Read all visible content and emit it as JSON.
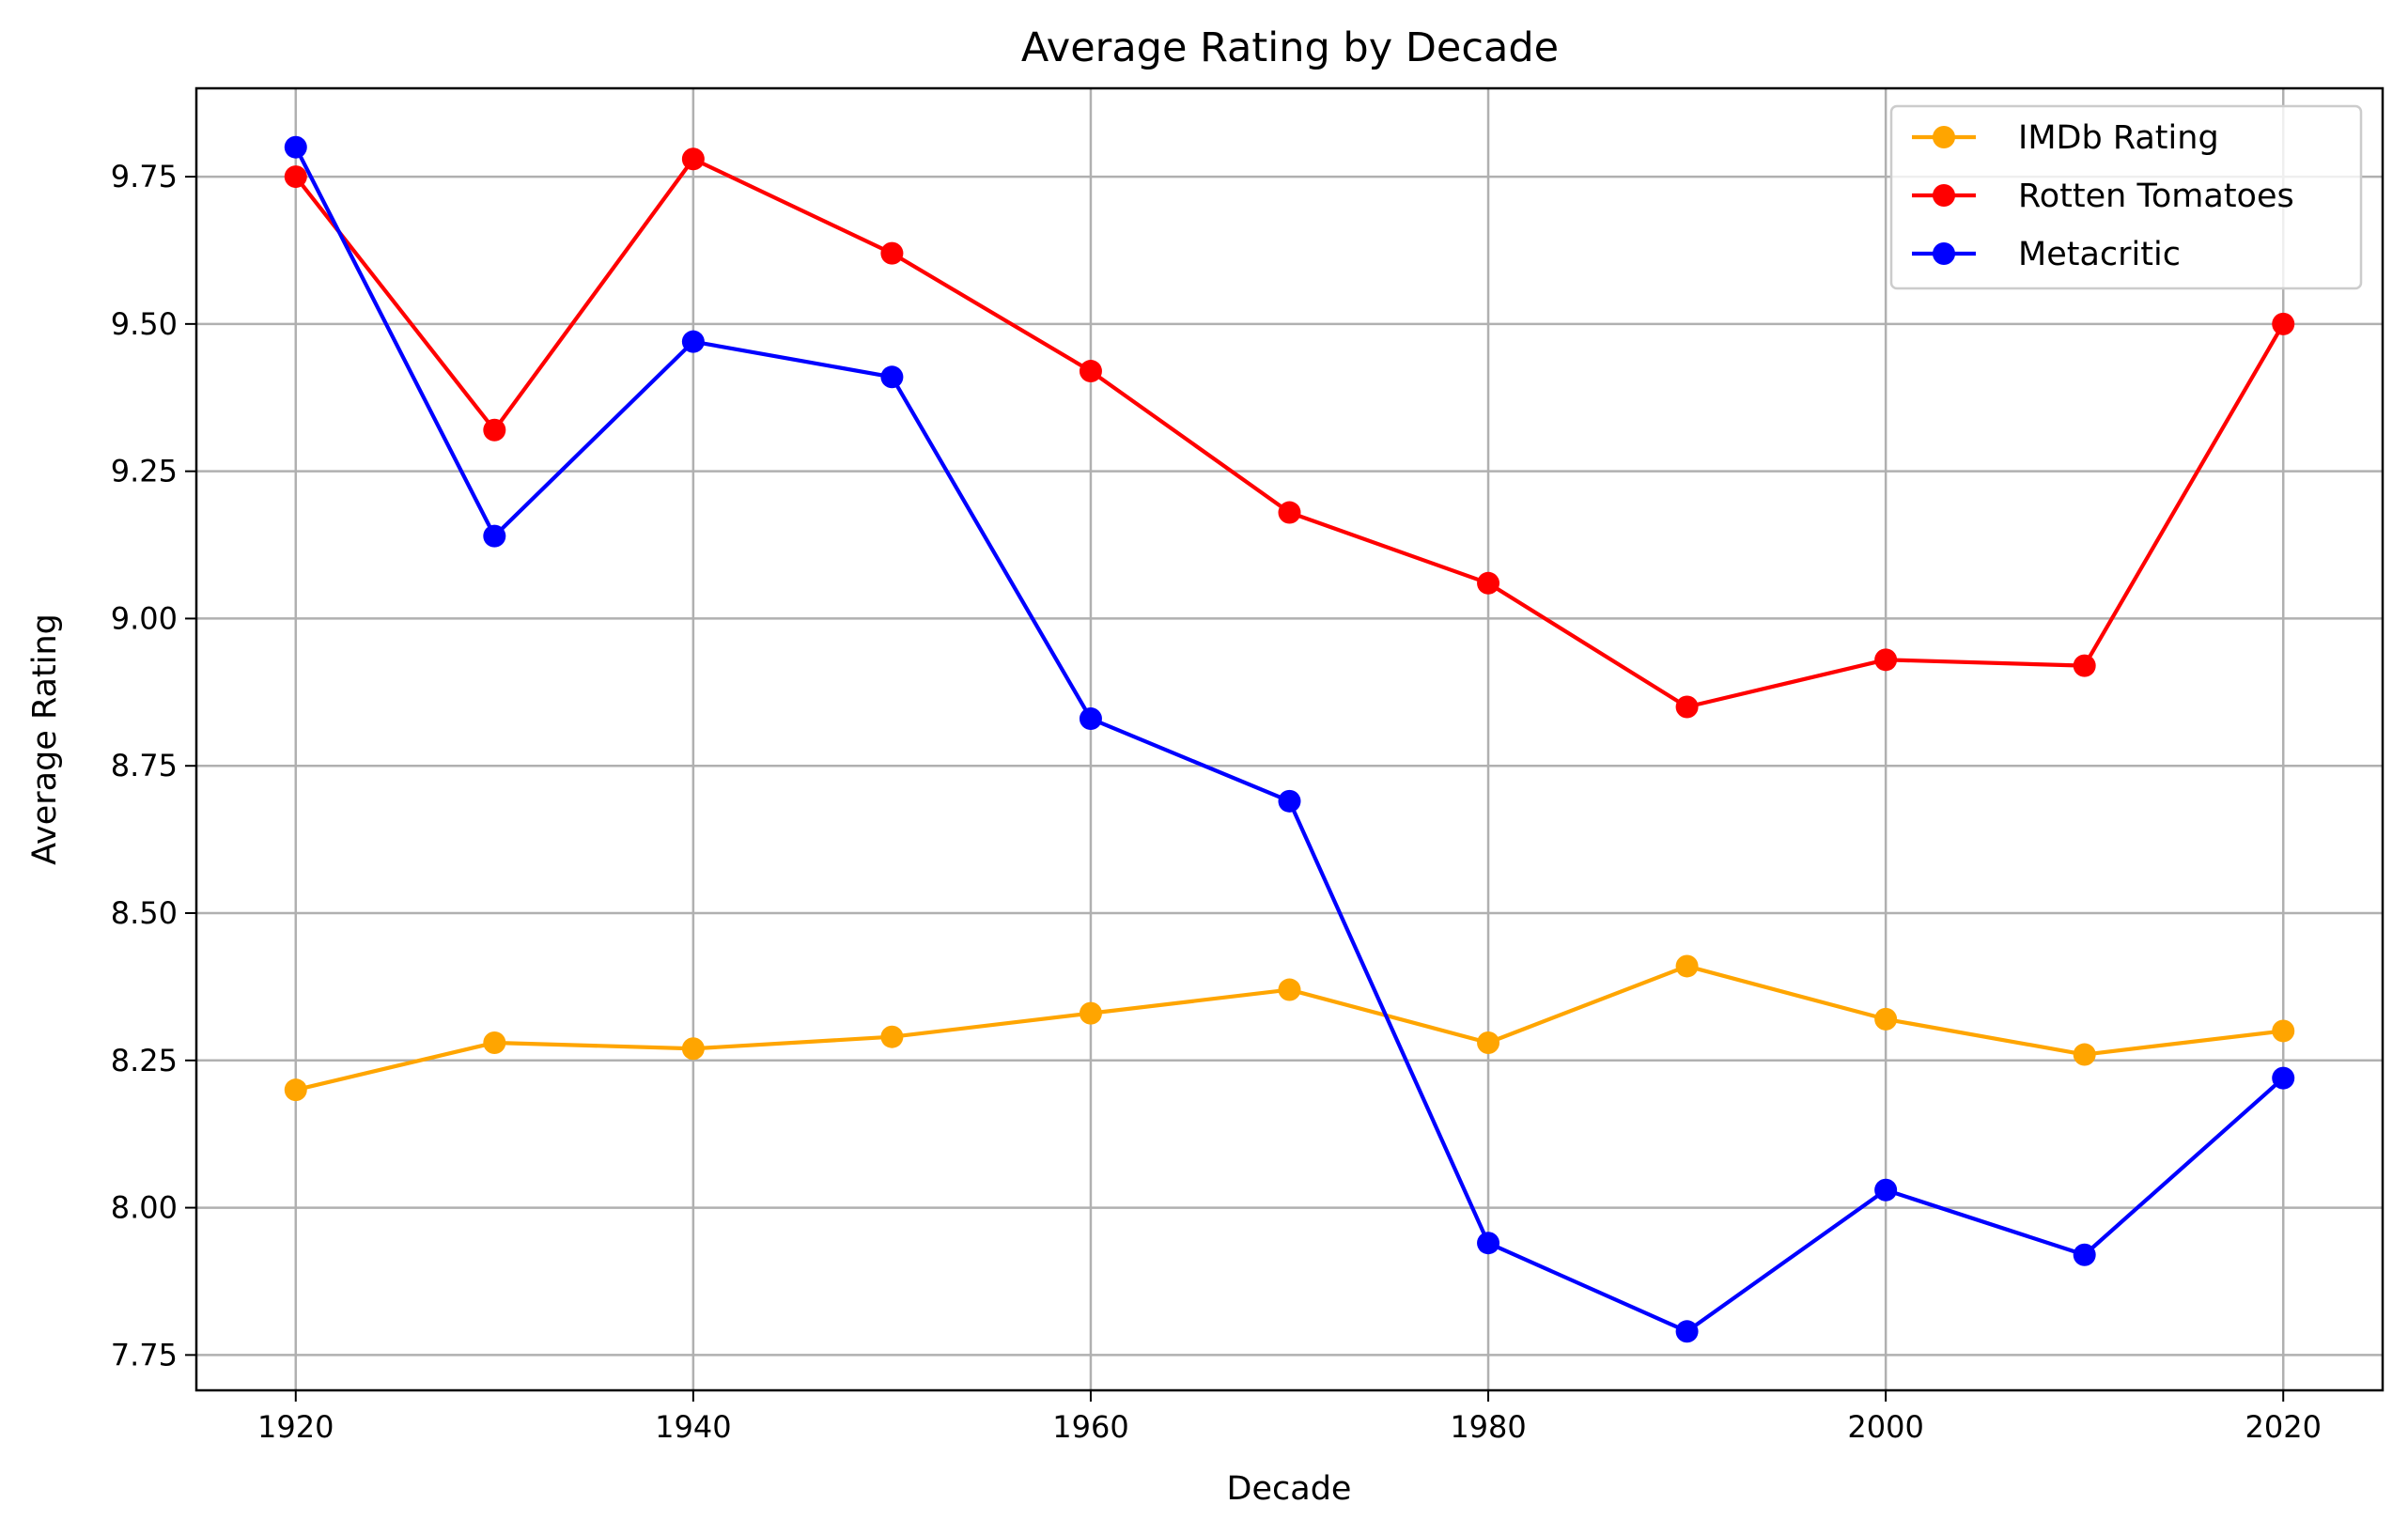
{
  "chart_data": {
    "type": "line",
    "title": "Average Rating by Decade",
    "xlabel": "Decade",
    "ylabel": "Average Rating",
    "x": [
      1920,
      1930,
      1940,
      1950,
      1960,
      1970,
      1980,
      1990,
      2000,
      2010,
      2020
    ],
    "xticks": [
      "1920",
      "1940",
      "1960",
      "1980",
      "2000",
      "2020"
    ],
    "yticks": [
      "7.75",
      "8.00",
      "8.25",
      "8.50",
      "8.75",
      "9.00",
      "9.25",
      "9.50",
      "9.75"
    ],
    "xlim": [
      1915,
      2025
    ],
    "ylim": [
      7.69,
      9.9
    ],
    "grid": true,
    "legend_position": "top-right",
    "series": [
      {
        "name": "IMDb Rating",
        "color": "#FFA500",
        "marker": "circle",
        "values": [
          8.2,
          8.28,
          8.27,
          8.29,
          8.33,
          8.37,
          8.28,
          8.41,
          8.32,
          8.26,
          8.3
        ]
      },
      {
        "name": "Rotten Tomatoes",
        "color": "#FF0000",
        "marker": "circle",
        "values": [
          9.75,
          9.32,
          9.78,
          9.62,
          9.42,
          9.18,
          9.06,
          8.85,
          8.93,
          8.92,
          9.5
        ]
      },
      {
        "name": "Metacritic",
        "color": "#0000FF",
        "marker": "circle",
        "values": [
          9.8,
          9.14,
          9.47,
          9.41,
          8.83,
          8.69,
          7.94,
          7.79,
          8.03,
          7.92,
          8.22
        ]
      }
    ]
  }
}
